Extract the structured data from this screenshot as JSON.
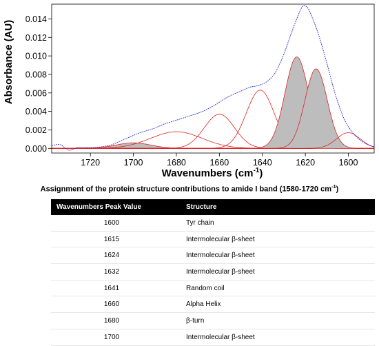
{
  "chart_data": {
    "type": "line",
    "title": "",
    "xlabel": "Wavenumbers (cm",
    "xlabel_sup": "-1",
    "xlabel_tail": ")",
    "ylabel": "Absorbance (AU)",
    "xlim": [
      1738,
      1588
    ],
    "x_reversed": true,
    "ylim": [
      -0.0005,
      0.0156
    ],
    "x_ticks": [
      1720,
      1700,
      1680,
      1660,
      1640,
      1620,
      1600
    ],
    "y_ticks": [
      0.0,
      0.002,
      0.004,
      0.006,
      0.008,
      0.01,
      0.012,
      0.014
    ],
    "y_tick_labels": [
      "0.000",
      "0.002",
      "0.004",
      "0.006",
      "0.008",
      "0.010",
      "0.012",
      "0.014"
    ],
    "grid": false,
    "legend": "none",
    "colors": {
      "spectrum": "#3333cc",
      "fit": "#e02020",
      "fill": "#bdbdbd"
    },
    "series": [
      {
        "role": "measured-spectrum",
        "x": [
          1738,
          1734,
          1730,
          1726,
          1722,
          1718,
          1714,
          1710,
          1706,
          1702,
          1698,
          1694,
          1690,
          1686,
          1682,
          1678,
          1674,
          1670,
          1666,
          1662,
          1658,
          1654,
          1650,
          1646,
          1642,
          1638,
          1634,
          1630,
          1626,
          1622,
          1620,
          1618,
          1614,
          1610,
          1606,
          1602,
          1598,
          1594,
          1590,
          1588
        ],
        "y": [
          0.0003,
          0.0004,
          -0.0002,
          0.0001,
          0.0001,
          0.0001,
          0.0002,
          0.0004,
          0.0008,
          0.0012,
          0.0016,
          0.0019,
          0.0022,
          0.0026,
          0.0029,
          0.0032,
          0.0035,
          0.0038,
          0.0042,
          0.0047,
          0.0053,
          0.0058,
          0.0062,
          0.0066,
          0.0068,
          0.0072,
          0.0082,
          0.0102,
          0.0128,
          0.0151,
          0.0154,
          0.0148,
          0.0124,
          0.0092,
          0.0058,
          0.0032,
          0.0017,
          0.0008,
          0.0003,
          0.0002
        ]
      }
    ],
    "components": [
      {
        "center": 1700,
        "amplitude": 0.0006,
        "width": 8,
        "filled": true
      },
      {
        "center": 1680,
        "amplitude": 0.0018,
        "width": 12,
        "filled": false
      },
      {
        "center": 1660,
        "amplitude": 0.0037,
        "width": 7,
        "filled": false
      },
      {
        "center": 1641,
        "amplitude": 0.0063,
        "width": 6.5,
        "filled": false
      },
      {
        "center": 1632,
        "amplitude": 0.0009,
        "width": 2.5,
        "filled": true
      },
      {
        "center": 1624,
        "amplitude": 0.0099,
        "width": 5.5,
        "filled": true
      },
      {
        "center": 1615,
        "amplitude": 0.0086,
        "width": 5.2,
        "filled": true
      },
      {
        "center": 1600,
        "amplitude": 0.0017,
        "width": 5.5,
        "filled": false
      }
    ]
  },
  "table": {
    "title": "Assignment of the protein structure contributions to amide I band (1580-1720 cm",
    "title_sup": "-1",
    "title_tail": ")",
    "headers": [
      "Wavenumbers Peak Value",
      "Structure"
    ],
    "rows": [
      [
        "1600",
        "Tyr chain"
      ],
      [
        "1615",
        "Intermolecular β-sheet"
      ],
      [
        "1624",
        "Intermolecular β-sheet"
      ],
      [
        "1632",
        "Intermolecular β-sheet"
      ],
      [
        "1641",
        "Random coil"
      ],
      [
        "1660",
        "Alpha Helix"
      ],
      [
        "1680",
        "β-turn"
      ],
      [
        "1700",
        "Intermolecular β-sheet"
      ]
    ]
  }
}
